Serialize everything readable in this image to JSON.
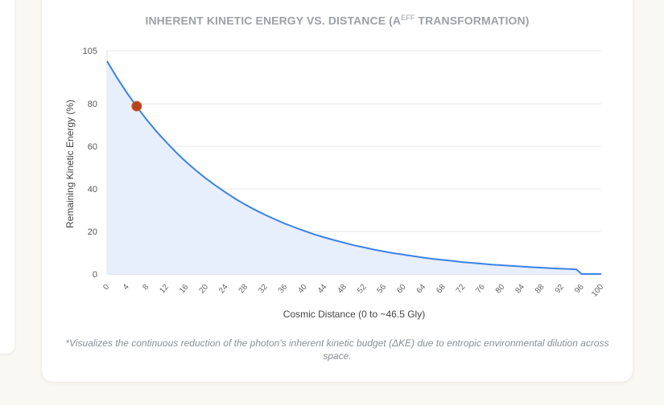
{
  "chart_data": {
    "type": "area",
    "title": "INHERENT KINETIC ENERGY VS. DISTANCE (A",
    "title_superscript": "EFF",
    "title_suffix": " TRANSFORMATION)",
    "xlabel": "Cosmic Distance (0 to ~46.5 Gly)",
    "ylabel": "Remaining Kinetic Energy (%)",
    "xlim": [
      0,
      100
    ],
    "ylim": [
      0,
      105
    ],
    "xticks": [
      "0",
      "4",
      "8",
      "12",
      "16",
      "20",
      "24",
      "28",
      "32",
      "36",
      "40",
      "44",
      "48",
      "52",
      "56",
      "60",
      "64",
      "68",
      "72",
      "76",
      "80",
      "84",
      "88",
      "92",
      "96",
      "100"
    ],
    "yticks": [
      "0",
      "20",
      "40",
      "60",
      "80",
      "105"
    ],
    "grid": true,
    "series": [
      {
        "x": [
          0,
          2,
          4,
          6,
          8,
          10,
          12,
          14,
          16,
          18,
          20,
          22,
          24,
          26,
          28,
          30,
          32,
          34,
          36,
          38,
          40,
          42,
          44,
          46,
          48,
          50,
          52,
          54,
          56,
          58,
          60,
          62,
          64,
          66,
          68,
          70,
          72,
          74,
          76,
          78,
          80,
          82,
          84,
          86,
          88,
          90,
          92,
          94,
          95,
          96,
          100
        ],
        "y": [
          100,
          92.3,
          85.2,
          78.7,
          72.6,
          67.0,
          61.9,
          57.1,
          52.7,
          48.7,
          44.9,
          41.5,
          38.3,
          35.3,
          32.6,
          30.1,
          27.8,
          25.7,
          23.7,
          21.9,
          20.2,
          18.6,
          17.2,
          15.9,
          14.7,
          13.5,
          12.5,
          11.5,
          10.6,
          9.8,
          9.1,
          8.4,
          7.7,
          7.1,
          6.6,
          6.1,
          5.6,
          5.2,
          4.8,
          4.4,
          4.1,
          3.8,
          3.5,
          3.2,
          3.0,
          2.7,
          2.5,
          2.3,
          2.2,
          0,
          0
        ]
      }
    ],
    "marker": {
      "x": 6,
      "y": 78.9
    },
    "colors": {
      "line": "#3b82e6",
      "fill": "#e8effc",
      "marker": "#b8431f",
      "grid": "#e6e6e6"
    }
  },
  "caption": "*Visualizes the continuous reduction of the photon's inherent kinetic budget (ΔKE) due to entropic environmental dilution across space."
}
